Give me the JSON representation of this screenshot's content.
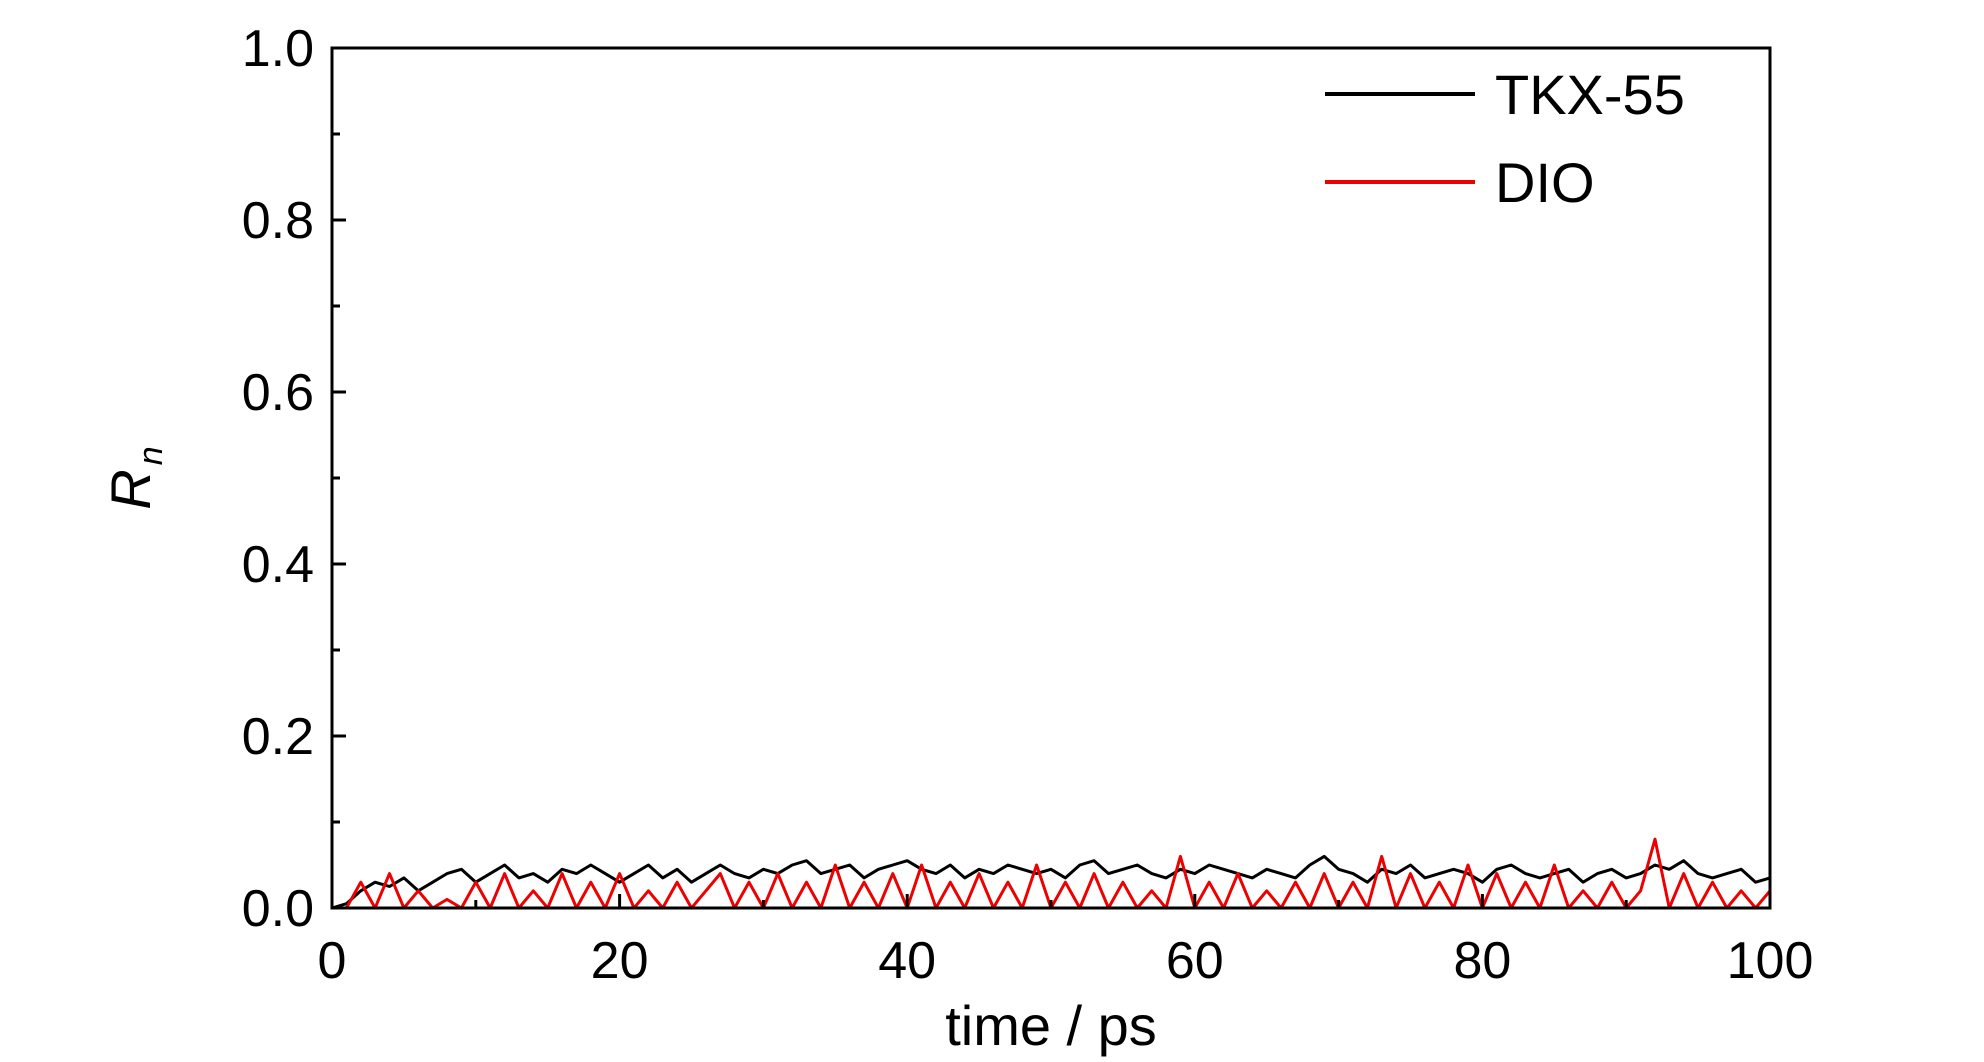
{
  "chart_data": {
    "type": "line",
    "xlabel": "time / ps",
    "ylabel": {
      "main": "R",
      "sub": "n"
    },
    "xlim": [
      0,
      100
    ],
    "ylim": [
      0,
      1.0
    ],
    "xticks": [
      0,
      20,
      40,
      60,
      80,
      100
    ],
    "xtick_labels": [
      "0",
      "20",
      "40",
      "60",
      "80",
      "100"
    ],
    "yticks": [
      0.0,
      0.2,
      0.4,
      0.6,
      0.8,
      1.0
    ],
    "ytick_labels": [
      "0.0",
      "0.2",
      "0.4",
      "0.6",
      "0.8",
      "1.0"
    ],
    "grid": false,
    "legend_position": "top-right",
    "series": [
      {
        "name": "TKX-55",
        "color": "#000000",
        "x": [
          0,
          1,
          2,
          3,
          4,
          5,
          6,
          7,
          8,
          9,
          10,
          11,
          12,
          13,
          14,
          15,
          16,
          17,
          18,
          19,
          20,
          21,
          22,
          23,
          24,
          25,
          26,
          27,
          28,
          29,
          30,
          31,
          32,
          33,
          34,
          35,
          36,
          37,
          38,
          39,
          40,
          41,
          42,
          43,
          44,
          45,
          46,
          47,
          48,
          49,
          50,
          51,
          52,
          53,
          54,
          55,
          56,
          57,
          58,
          59,
          60,
          61,
          62,
          63,
          64,
          65,
          66,
          67,
          68,
          69,
          70,
          71,
          72,
          73,
          74,
          75,
          76,
          77,
          78,
          79,
          80,
          81,
          82,
          83,
          84,
          85,
          86,
          87,
          88,
          89,
          90,
          91,
          92,
          93,
          94,
          95,
          96,
          97,
          98,
          99,
          100
        ],
        "y": [
          0.0,
          0.005,
          0.02,
          0.03,
          0.025,
          0.035,
          0.02,
          0.03,
          0.04,
          0.045,
          0.03,
          0.04,
          0.05,
          0.035,
          0.04,
          0.03,
          0.045,
          0.04,
          0.05,
          0.04,
          0.03,
          0.04,
          0.05,
          0.035,
          0.045,
          0.03,
          0.04,
          0.05,
          0.04,
          0.035,
          0.045,
          0.04,
          0.05,
          0.055,
          0.04,
          0.045,
          0.05,
          0.035,
          0.045,
          0.05,
          0.055,
          0.045,
          0.04,
          0.05,
          0.035,
          0.045,
          0.04,
          0.05,
          0.045,
          0.04,
          0.045,
          0.035,
          0.05,
          0.055,
          0.04,
          0.045,
          0.05,
          0.04,
          0.035,
          0.045,
          0.04,
          0.05,
          0.045,
          0.04,
          0.035,
          0.045,
          0.04,
          0.035,
          0.05,
          0.06,
          0.045,
          0.04,
          0.03,
          0.045,
          0.04,
          0.05,
          0.035,
          0.04,
          0.045,
          0.04,
          0.03,
          0.045,
          0.05,
          0.04,
          0.035,
          0.04,
          0.045,
          0.03,
          0.04,
          0.045,
          0.035,
          0.04,
          0.05,
          0.045,
          0.055,
          0.04,
          0.035,
          0.04,
          0.045,
          0.03,
          0.035
        ]
      },
      {
        "name": "DIO",
        "color": "#ee0000",
        "x": [
          0,
          1,
          2,
          3,
          4,
          5,
          6,
          7,
          8,
          9,
          10,
          11,
          12,
          13,
          14,
          15,
          16,
          17,
          18,
          19,
          20,
          21,
          22,
          23,
          24,
          25,
          26,
          27,
          28,
          29,
          30,
          31,
          32,
          33,
          34,
          35,
          36,
          37,
          38,
          39,
          40,
          41,
          42,
          43,
          44,
          45,
          46,
          47,
          48,
          49,
          50,
          51,
          52,
          53,
          54,
          55,
          56,
          57,
          58,
          59,
          60,
          61,
          62,
          63,
          64,
          65,
          66,
          67,
          68,
          69,
          70,
          71,
          72,
          73,
          74,
          75,
          76,
          77,
          78,
          79,
          80,
          81,
          82,
          83,
          84,
          85,
          86,
          87,
          88,
          89,
          90,
          91,
          92,
          93,
          94,
          95,
          96,
          97,
          98,
          99,
          100
        ],
        "y": [
          0.0,
          0.0,
          0.03,
          0.0,
          0.04,
          0.0,
          0.02,
          0.0,
          0.01,
          0.0,
          0.03,
          0.0,
          0.04,
          0.0,
          0.02,
          0.0,
          0.04,
          0.0,
          0.03,
          0.0,
          0.04,
          0.0,
          0.02,
          0.0,
          0.03,
          0.0,
          0.02,
          0.04,
          0.0,
          0.03,
          0.0,
          0.04,
          0.0,
          0.03,
          0.0,
          0.05,
          0.0,
          0.03,
          0.0,
          0.04,
          0.0,
          0.05,
          0.0,
          0.03,
          0.0,
          0.04,
          0.0,
          0.03,
          0.0,
          0.05,
          0.0,
          0.03,
          0.0,
          0.04,
          0.0,
          0.03,
          0.0,
          0.02,
          0.0,
          0.06,
          0.0,
          0.03,
          0.0,
          0.04,
          0.0,
          0.02,
          0.0,
          0.03,
          0.0,
          0.04,
          0.0,
          0.03,
          0.0,
          0.06,
          0.0,
          0.04,
          0.0,
          0.03,
          0.0,
          0.05,
          0.0,
          0.04,
          0.0,
          0.03,
          0.0,
          0.05,
          0.0,
          0.02,
          0.0,
          0.03,
          0.0,
          0.02,
          0.08,
          0.0,
          0.04,
          0.0,
          0.03,
          0.0,
          0.02,
          0.0,
          0.02
        ]
      }
    ]
  }
}
